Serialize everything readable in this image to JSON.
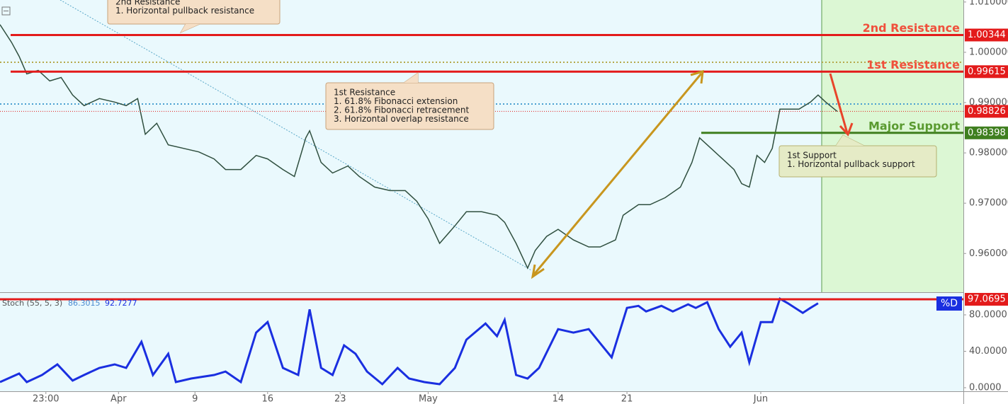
{
  "chart_data": [
    {
      "type": "line",
      "x": [
        0,
        3,
        5,
        7,
        10,
        13,
        16,
        19,
        22,
        26,
        30,
        33,
        36,
        38,
        41,
        44,
        48,
        52,
        56,
        59,
        63,
        67,
        70,
        74,
        77,
        80,
        81,
        84,
        87,
        91,
        94,
        98,
        102,
        106,
        109,
        112,
        115,
        119,
        122,
        126,
        130,
        132,
        135,
        138,
        140,
        143,
        146,
        150,
        154,
        157,
        161,
        163,
        167,
        170,
        174,
        178,
        181,
        183,
        186,
        189,
        192,
        194,
        196,
        198,
        200,
        202,
        204,
        207,
        209,
        212,
        214,
        216,
        219
      ],
      "values": [
        1.0055,
        1.002,
        0.9992,
        0.9957,
        0.9964,
        0.9943,
        0.995,
        0.9915,
        0.9894,
        0.9908,
        0.9901,
        0.9894,
        0.9908,
        0.9837,
        0.9859,
        0.9816,
        0.9809,
        0.9802,
        0.9788,
        0.9767,
        0.9767,
        0.9795,
        0.9788,
        0.9767,
        0.9753,
        0.983,
        0.9844,
        0.9781,
        0.976,
        0.9774,
        0.9753,
        0.9732,
        0.9725,
        0.9725,
        0.9704,
        0.9669,
        0.962,
        0.9655,
        0.9683,
        0.9683,
        0.9676,
        0.9662,
        0.962,
        0.9571,
        0.9606,
        0.9634,
        0.9648,
        0.9627,
        0.9613,
        0.9613,
        0.9627,
        0.9676,
        0.9697,
        0.9697,
        0.9711,
        0.9732,
        0.9781,
        0.983,
        0.9809,
        0.9788,
        0.9767,
        0.9739,
        0.9732,
        0.9795,
        0.9781,
        0.9809,
        0.9887,
        0.9887,
        0.9887,
        0.9901,
        0.9915,
        0.9901,
        0.98826
      ],
      "color": "#2f4f3f",
      "xlim": [
        0,
        252
      ],
      "ylim": [
        0.9523,
        1.0104
      ],
      "yticks": [
        {
          "value": 0.96,
          "label": "0.960000"
        },
        {
          "value": 0.97,
          "label": "0.970000"
        },
        {
          "value": 0.98,
          "label": "0.980000"
        },
        {
          "value": 0.99,
          "label": "0.990000"
        },
        {
          "value": 1.0,
          "label": "1.000000"
        },
        {
          "value": 1.01,
          "label": "1.010000"
        }
      ],
      "levels": [
        {
          "label": "2nd Resistance",
          "value": 1.00344,
          "color": "#e31b1b"
        },
        {
          "label": "1st Resistance",
          "value": 0.99615,
          "color": "#e31b1b"
        },
        {
          "label": "Major Support",
          "value": 0.98398,
          "color": "#3f7f1f"
        }
      ],
      "last_value": 0.98826,
      "last_color": "#e31b1b",
      "annotations": [
        {
          "lines": [
            "2nd Resistance",
            "1. Horizontal pullback resistance"
          ]
        },
        {
          "lines": [
            "1st Resistance",
            "1. 61.8% Fibonacci extension",
            "2. 61.8% Fibonacci retracement",
            "3. Horizontal overlap resistance"
          ]
        },
        {
          "lines": [
            "1st Support",
            "1. Horizontal pullback support"
          ]
        }
      ]
    },
    {
      "type": "line",
      "title": "Stoch (55, 5, 3)",
      "legend_values": [
        86.3015,
        92.7277
      ],
      "x": [
        0,
        5,
        7,
        11,
        15,
        19,
        22,
        26,
        30,
        33,
        37,
        40,
        44,
        46,
        50,
        56,
        59,
        63,
        67,
        70,
        74,
        78,
        81,
        84,
        87,
        90,
        93,
        96,
        100,
        104,
        107,
        111,
        115,
        119,
        122,
        127,
        130,
        132,
        135,
        138,
        141,
        146,
        150,
        154,
        157,
        160,
        164,
        167,
        169,
        173,
        176,
        180,
        182,
        185,
        188,
        191,
        194,
        196,
        199,
        202,
        204,
        206,
        210,
        212,
        214
      ],
      "values": [
        6.2,
        15.5,
        6.2,
        14,
        25.6,
        7.8,
        14,
        21.7,
        25.6,
        21.7,
        50.4,
        14,
        37.2,
        6.2,
        10.1,
        14,
        17.8,
        6.2,
        60.5,
        72.1,
        21.7,
        14,
        86,
        21.7,
        14,
        46.5,
        37.2,
        17.8,
        3.9,
        21.7,
        10.1,
        6.2,
        3.9,
        21.7,
        52.7,
        70.5,
        56.6,
        74.4,
        14,
        10.1,
        21.7,
        64.3,
        60.5,
        64.3,
        48.8,
        33.3,
        87.6,
        89.9,
        83.7,
        89.9,
        83.7,
        91.5,
        87.6,
        93.8,
        64.3,
        45,
        60.5,
        27.9,
        72.1,
        72.1,
        97.7,
        93,
        82.2,
        87.6,
        92.7277
      ],
      "color": "#1a2fe0",
      "xlim": [
        0,
        252
      ],
      "ylim": [
        -3.9,
        103.3
      ],
      "yticks": [
        {
          "value": 0,
          "label": "0.0000"
        },
        {
          "value": 40,
          "label": "40.0000"
        },
        {
          "value": 80,
          "label": "80.0000"
        }
      ],
      "level": 97.0695,
      "level_color": "#e31b1b",
      "tag": "%D",
      "xticks": [
        {
          "value": 12,
          "label": "23:00"
        },
        {
          "value": 31,
          "label": "Apr"
        },
        {
          "value": 51,
          "label": "9"
        },
        {
          "value": 70,
          "label": "16"
        },
        {
          "value": 89,
          "label": "23"
        },
        {
          "value": 112,
          "label": "May"
        },
        {
          "value": 146,
          "label": "14"
        },
        {
          "value": 164,
          "label": "21"
        },
        {
          "value": 199,
          "label": "Jun"
        }
      ]
    }
  ]
}
